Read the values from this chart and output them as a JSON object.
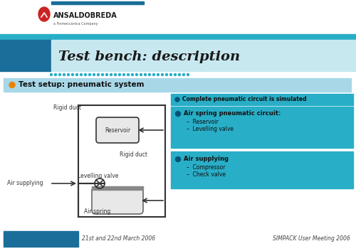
{
  "bg_color": "#f0f0f0",
  "white": "#ffffff",
  "title_text": "Test bench: description",
  "logo_text": "ANSALDOBREDA",
  "logo_sub": "a Finmeccanica Company",
  "logo_bar_color": "#1a6e99",
  "cyan_bar_color": "#29aec7",
  "title_bg_light": "#c8e8f0",
  "title_bg_dark": "#29aec7",
  "section1_bg": "#a8d8e8",
  "section1_text": "Test setup: pneumatic system",
  "section2_bg": "#29aec7",
  "section2_text": "Complete pneumatic circuit is simulated",
  "info_box_bg": "#29aec7",
  "info_box1_title": "Air spring pneumatic circuit:",
  "info_box1_items": [
    "Reservoir",
    "Levelling valve"
  ],
  "info_box2_title": "Air supplying",
  "info_box2_items": [
    "Compressor",
    "Check valve"
  ],
  "diagram_labels": {
    "rigid_duct_top": "Rigid duct",
    "reservoir": "Reservoir",
    "rigid_duct_mid": "Rigid duct",
    "levelling_valve": "Levelling valve",
    "air_supplying": "Air supplying",
    "air_spring": "Air spring"
  },
  "footer_box_color": "#1a6e99",
  "footer_left": "21st and 22nd March 2006",
  "footer_right": "SIMPACK User Meeting 2006",
  "dot_color": "#29aec7",
  "bullet_orange": "#e8820a",
  "bullet_cyan": "#29aec7",
  "diagram_line_color": "#333333",
  "shape_fill": "#e8e8e8"
}
